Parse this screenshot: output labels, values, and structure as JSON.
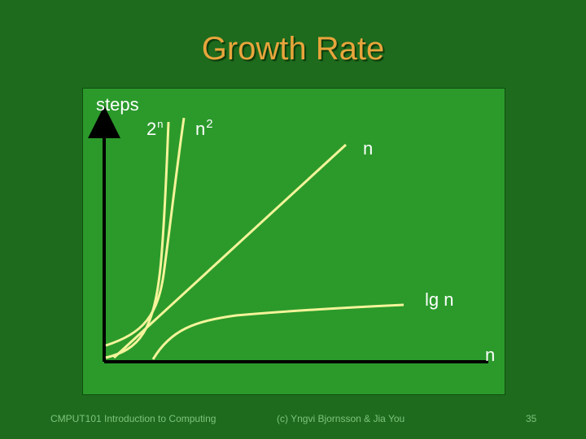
{
  "slide": {
    "title": "Growth Rate",
    "footer_left": "CMPUT101 Introduction to Computing",
    "footer_center": "(c) Yngvi Bjornsson & Jia You",
    "page_number": "35"
  },
  "diagram": {
    "y_axis_label": "steps",
    "x_axis_label": "n",
    "curves": {
      "exp_base": "2",
      "exp_sup": "n",
      "quad_base": "n",
      "quad_sup": "2",
      "linear": "n",
      "log": "lg n"
    }
  },
  "colors": {
    "background": "#1e6b1e",
    "panel": "#2b9a2b",
    "curve": "#f4f49a",
    "title": "#e8a53c"
  }
}
